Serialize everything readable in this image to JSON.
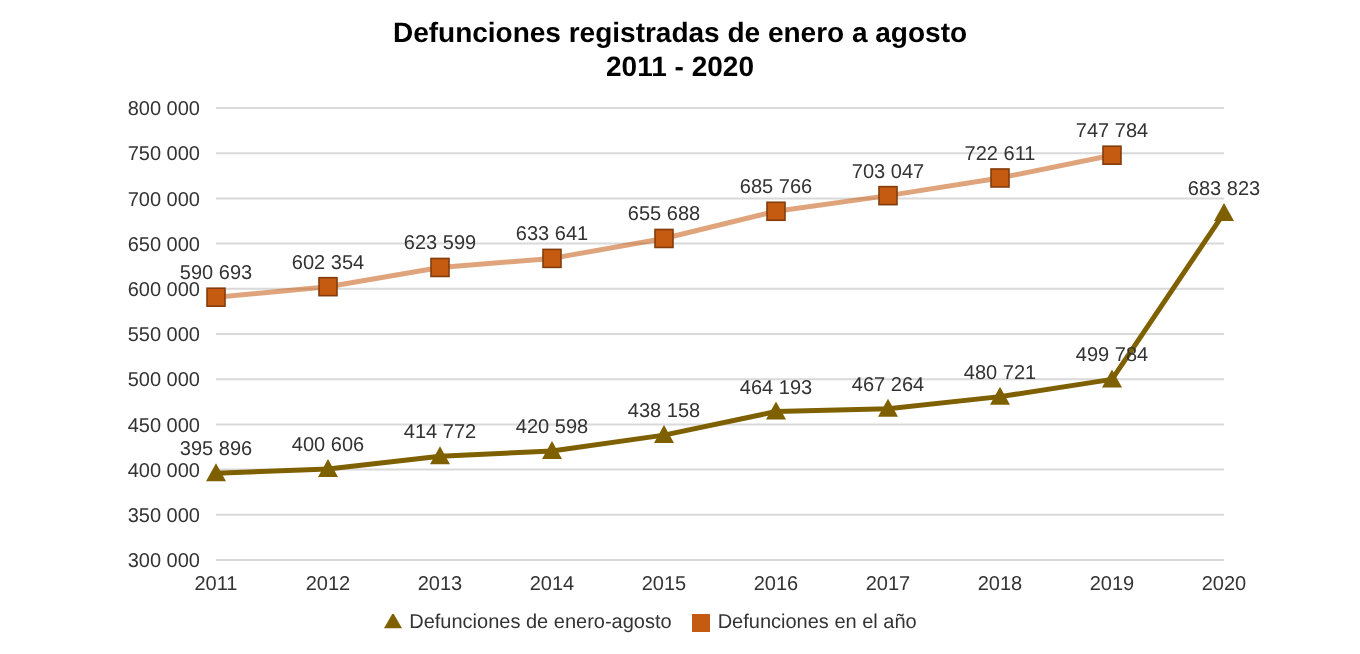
{
  "chart_data": {
    "type": "line",
    "title": "Defunciones registradas de enero a agosto",
    "subtitle": "2011 - 2020",
    "categories": [
      "2011",
      "2012",
      "2013",
      "2014",
      "2015",
      "2016",
      "2017",
      "2018",
      "2019",
      "2020"
    ],
    "series": [
      {
        "name": "Defunciones de enero-agosto",
        "color": "#7f6000",
        "marker": "triangle",
        "values": [
          395896,
          400606,
          414772,
          420598,
          438158,
          464193,
          467264,
          480721,
          499784,
          683823
        ],
        "value_labels": [
          "395 896",
          "400 606",
          "414 772",
          "420 598",
          "438 158",
          "464 193",
          "467 264",
          "480 721",
          "499 784",
          "683 823"
        ]
      },
      {
        "name": "Defunciones en el año",
        "color": "#c55a11",
        "marker": "square",
        "values": [
          590693,
          602354,
          623599,
          633641,
          655688,
          685766,
          703047,
          722611,
          747784,
          null
        ],
        "value_labels": [
          "590 693",
          "602 354",
          "623 599",
          "633 641",
          "655 688",
          "685 766",
          "703 047",
          "722 611",
          "747 784",
          null
        ]
      }
    ],
    "ylim": [
      300000,
      800000
    ],
    "yticks": [
      {
        "value": 300000,
        "label": "300 000"
      },
      {
        "value": 350000,
        "label": "350 000"
      },
      {
        "value": 400000,
        "label": "400 000"
      },
      {
        "value": 450000,
        "label": "450 000"
      },
      {
        "value": 500000,
        "label": "500 000"
      },
      {
        "value": 550000,
        "label": "550 000"
      },
      {
        "value": 600000,
        "label": "600 000"
      },
      {
        "value": 650000,
        "label": "650 000"
      },
      {
        "value": 700000,
        "label": "700 000"
      },
      {
        "value": 750000,
        "label": "750 000"
      },
      {
        "value": 800000,
        "label": "800 000"
      }
    ],
    "grid": "y",
    "legend": "bottom"
  }
}
